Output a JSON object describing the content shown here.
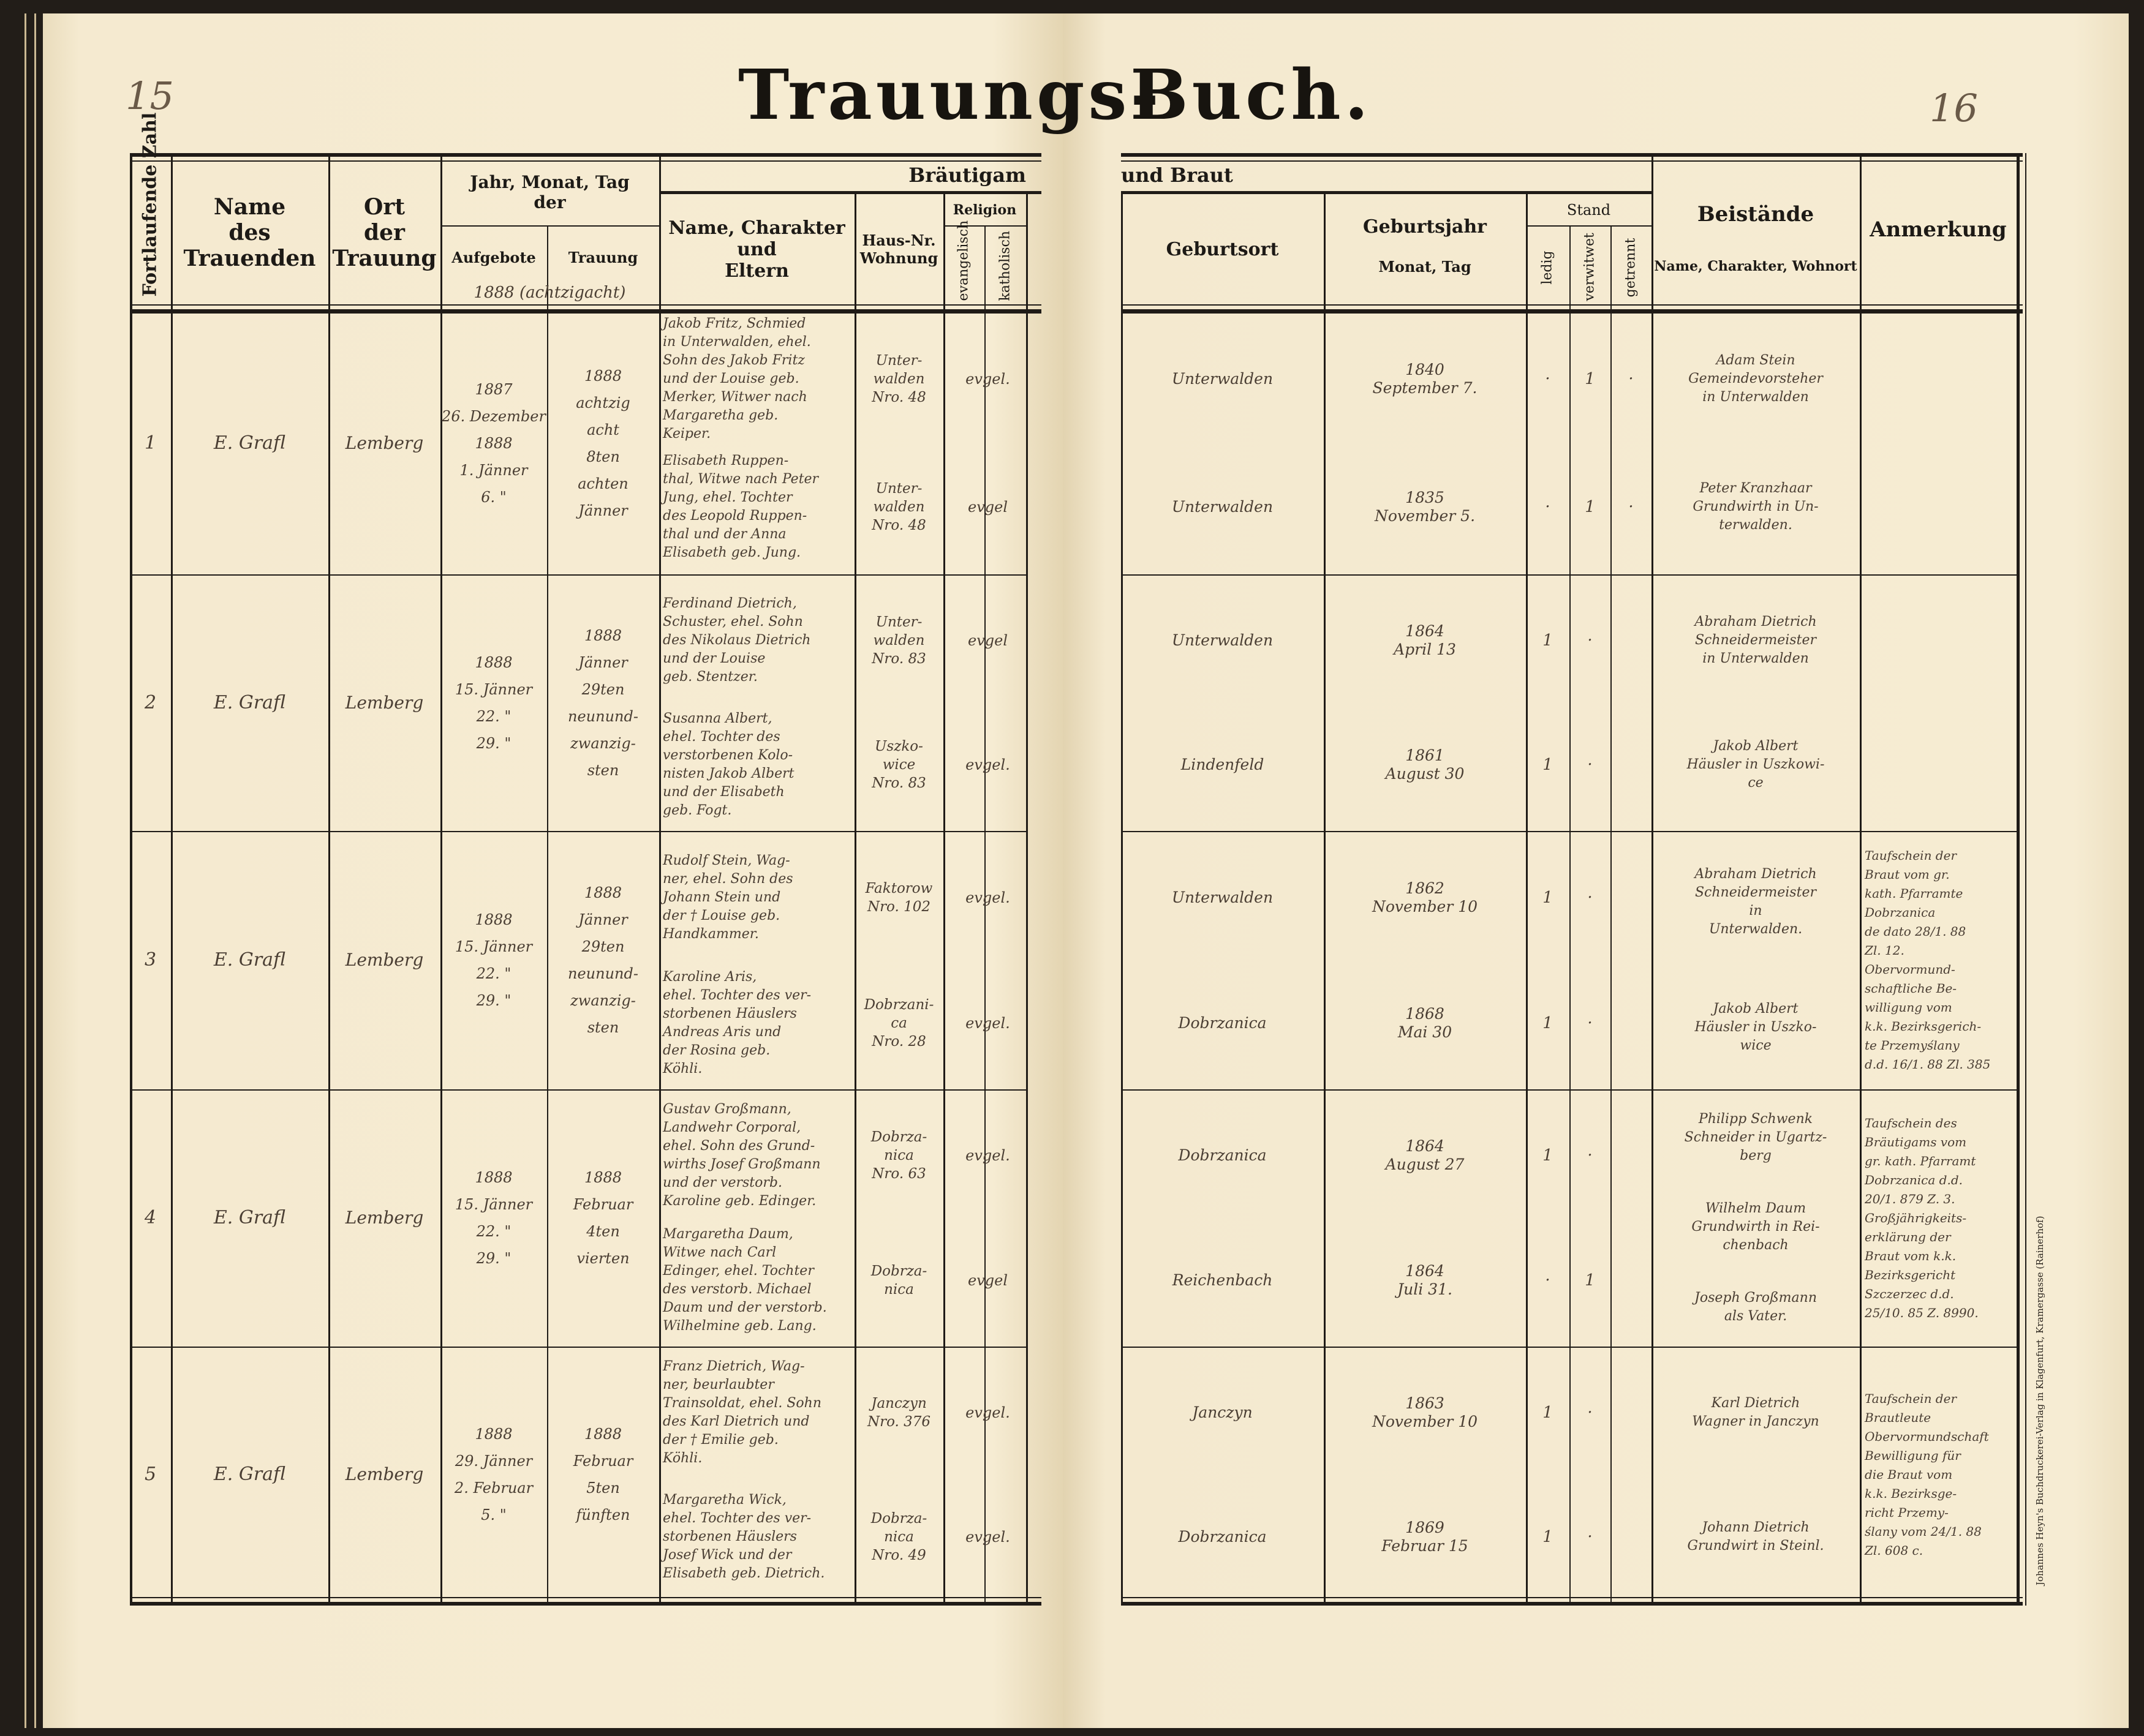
{
  "book": {
    "title_left": "Trauungs-",
    "title_right": "Buch.",
    "page_left": "15",
    "page_right": "16",
    "imprint": "Johannes Heyn's Buchdruckerei-Verlag in Klagenfurt, Kramergasse (Rainerhof)"
  },
  "columns": {
    "number": "Fortlaufende Zahl",
    "officiant": "Name\ndes\nTrauenden",
    "place": "Ort\nder\nTrauung",
    "date_group": "Jahr, Monat, Tag\nder",
    "banns": "Aufgebote",
    "wedding": "Trauung",
    "year_note": "1888 (achtzigacht)",
    "groom_group": "Bräutigam",
    "bride_group": "und Braut",
    "name": "Name, Charakter\nund\nEltern",
    "house": "Haus-Nr.\nWohnung",
    "religion": "Religion",
    "evangelical": "evangelisch",
    "catholic": "katholisch",
    "birthplace": "Geburtsort",
    "birth": "Geburtsjahr",
    "birth_sub": "Monat, Tag",
    "status": "Stand",
    "single": "ledig",
    "widowed": "verwitwet",
    "separated": "getrennt",
    "witnesses": "Beistände",
    "witnesses_sub": "Name, Charakter, Wohnort",
    "remarks": "Anmerkung"
  },
  "entries": [
    {
      "number": "1",
      "officiant": "E. Grafl",
      "place": "Lemberg",
      "banns": "1887\n26. Dezember\n1888\n1. Jänner\n6.  \"",
      "wedding": "1888\nachtzig\nacht\n8ten\nachten\nJänner",
      "groom": {
        "text": "Jakob Fritz, Schmied\nin Unterwalden, ehel.\nSohn des Jakob Fritz\nund der Louise geb.\nMerker, Witwer nach\nMargaretha geb.\nKeiper.",
        "house": "Unter-\nwalden\nNro. 48",
        "religion": "evgel.",
        "birthplace": "Unterwalden",
        "birth": "1840\nSeptember 7.",
        "status": [
          "·",
          "1",
          "·"
        ]
      },
      "bride": {
        "text": "Elisabeth Ruppen-\nthal, Witwe nach Peter\nJung, ehel. Tochter\ndes Leopold Ruppen-\nthal und der Anna\nElisabeth geb. Jung.",
        "house": "Unter-\nwalden\nNro. 48",
        "religion": "evgel",
        "birthplace": "Unterwalden",
        "birth": "1835\nNovember 5.",
        "status": [
          "·",
          "1",
          "·"
        ]
      },
      "witnesses": [
        "Adam Stein\nGemeindevorsteher\nin Unterwalden",
        "Peter Kranzhaar\nGrundwirth in Un-\nterwalden."
      ],
      "remarks": ""
    },
    {
      "number": "2",
      "officiant": "E. Grafl",
      "place": "Lemberg",
      "banns": "1888\n15. Jänner\n22.  \"\n29.  \"",
      "wedding": "1888\nJänner\n29ten\nneunund-\nzwanzig-\nsten",
      "groom": {
        "text": "Ferdinand Dietrich,\nSchuster, ehel. Sohn\ndes Nikolaus Dietrich\nund der Louise\ngeb. Stentzer.",
        "house": "Unter-\nwalden\nNro. 83",
        "religion": "evgel",
        "birthplace": "Unterwalden",
        "birth": "1864\nApril 13",
        "status": [
          "1",
          "·",
          ""
        ]
      },
      "bride": {
        "text": "Susanna Albert,\nehel. Tochter des\nverstorbenen Kolo-\nnisten Jakob Albert\nund der Elisabeth\ngeb. Fogt.",
        "house": "Uszko-\nwice\nNro. 83",
        "religion": "evgel.",
        "birthplace": "Lindenfeld",
        "birth": "1861\nAugust 30",
        "status": [
          "1",
          "·",
          ""
        ]
      },
      "witnesses": [
        "Abraham Dietrich\nSchneidermeister\nin Unterwalden",
        "Jakob Albert\nHäusler in Uszkowi-\nce"
      ],
      "remarks": ""
    },
    {
      "number": "3",
      "officiant": "E. Grafl",
      "place": "Lemberg",
      "banns": "1888\n15. Jänner\n22.  \"\n29.  \"",
      "wedding": "1888\nJänner\n29ten\nneunund-\nzwanzig-\nsten",
      "groom": {
        "text": "Rudolf Stein, Wag-\nner, ehel. Sohn des\nJohann Stein und\nder † Louise geb.\nHandkammer.",
        "house": "Faktorow\nNro. 102",
        "religion": "evgel.",
        "birthplace": "Unterwalden",
        "birth": "1862\nNovember 10",
        "status": [
          "1",
          "·",
          ""
        ]
      },
      "bride": {
        "text": "Karoline Aris,\nehel. Tochter des ver-\nstorbenen Häuslers\nAndreas Aris und\nder Rosina geb.\nKöhli.",
        "house": "Dobrzani-\nca\nNro. 28",
        "religion": "evgel.",
        "birthplace": "Dobrzanica",
        "birth": "1868\nMai 30",
        "status": [
          "1",
          "·",
          ""
        ]
      },
      "witnesses": [
        "Abraham Dietrich\nSchneidermeister\nin\nUnterwalden.",
        "Jakob Albert\nHäusler in Uszko-\nwice"
      ],
      "remarks": "Taufschein der\nBraut vom gr.\nkath. Pfarramte\nDobrzanica\nde dato 28/1. 88\nZl. 12.\nObervormund-\nschaftliche Be-\nwilligung vom\nk.k. Bezirksgerich-\nte Przemyślany\nd.d. 16/1. 88 Zl. 385"
    },
    {
      "number": "4",
      "officiant": "E. Grafl",
      "place": "Lemberg",
      "banns": "1888\n15. Jänner\n22.  \"\n29.  \"",
      "wedding": "1888\nFebruar\n4ten\nvierten",
      "groom": {
        "text": "Gustav Großmann,\nLandwehr Corporal,\nehel. Sohn des Grund-\nwirths Josef Großmann\nund der verstorb.\nKaroline geb. Edinger.",
        "house": "Dobrza-\nnica\nNro. 63",
        "religion": "evgel.",
        "birthplace": "Dobrzanica",
        "birth": "1864\nAugust 27",
        "status": [
          "1",
          "·",
          ""
        ]
      },
      "bride": {
        "text": "Margaretha Daum,\nWitwe nach Carl\nEdinger, ehel. Tochter\ndes verstorb. Michael\nDaum und der verstorb.\nWilhelmine geb. Lang.",
        "house": "Dobrza-\nnica",
        "religion": "evgel",
        "birthplace": "Reichenbach",
        "birth": "1864\nJuli 31.",
        "status": [
          "·",
          "1",
          ""
        ]
      },
      "witnesses": [
        "Philipp Schwenk\nSchneider in Ugartz-\nberg",
        "Wilhelm Daum\nGrundwirth in Rei-\nchenbach",
        "Joseph Großmann\nals Vater."
      ],
      "remarks": "Taufschein des\nBräutigams vom\ngr. kath. Pfarramt\nDobrzanica d.d.\n20/1. 879 Z. 3.\nGroßjährigkeits-\nerklärung der\nBraut vom k.k.\nBezirksgericht\nSzczerzec d.d.\n25/10. 85 Z. 8990."
    },
    {
      "number": "5",
      "officiant": "E. Grafl",
      "place": "Lemberg",
      "banns": "1888\n29. Jänner\n2. Februar\n5.  \"",
      "wedding": "1888\nFebruar\n5ten\nfünften",
      "groom": {
        "text": "Franz Dietrich, Wag-\nner, beurlaubter\nTrainsoldat, ehel. Sohn\ndes Karl Dietrich und\nder † Emilie geb.\nKöhli.",
        "house": "Janczyn\nNro. 376",
        "religion": "evgel.",
        "birthplace": "Janczyn",
        "birth": "1863\nNovember 10",
        "status": [
          "1",
          "·",
          ""
        ]
      },
      "bride": {
        "text": "Margaretha Wick,\nehel. Tochter des ver-\nstorbenen Häuslers\nJosef Wick und der\nElisabeth geb. Dietrich.",
        "house": "Dobrza-\nnica\nNro. 49",
        "religion": "evgel.",
        "birthplace": "Dobrzanica",
        "birth": "1869\nFebruar 15",
        "status": [
          "1",
          "·",
          ""
        ]
      },
      "witnesses": [
        "Karl Dietrich\nWagner in Janczyn",
        "Johann Dietrich\nGrundwirt in Steinl."
      ],
      "remarks": "Taufschein der\nBrautleute\nObervormundschaft\nBewilligung für\ndie Braut vom\nk.k. Bezirksge-\nricht Przemy-\nślany vom 24/1. 88\nZl. 608 c."
    }
  ]
}
